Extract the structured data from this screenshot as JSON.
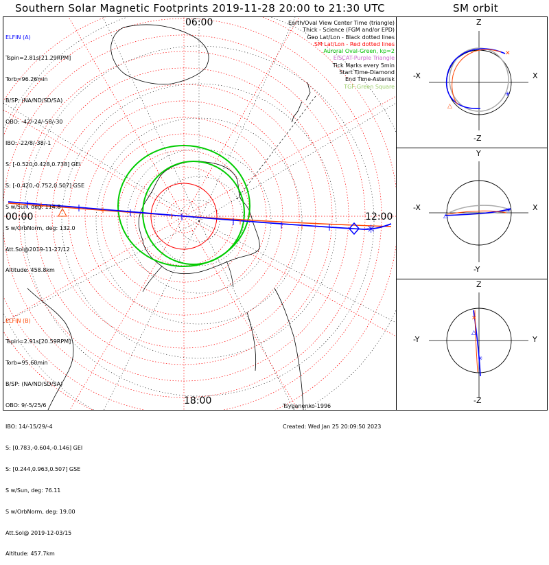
{
  "title": "Southern Solar Magnetic Footprints 2019-11-28 20:00 to 21:30 UTC",
  "sm_title": "SM orbit",
  "elfin_a": {
    "name": "ELFIN (A)",
    "color": "#0000ff",
    "lines": [
      "Tspin=2.81s[21.29RPM]",
      "Torb=96.26min",
      "B/SP: (NA/ND/SD/SA)",
      "OBO: -42/-24/-58/-30",
      "IBO: -22/8/-38/-1",
      "S: [-0.520,0.428,0.738] GEI",
      "S: [-0.420,-0.752,0.507] GSE",
      "S w/Sun, deg: 114.8",
      "S w/OrbNorm, deg: 132.0",
      "Att.Sol@2019-11-27/12",
      "Altitude: 458.8km"
    ]
  },
  "elfin_b": {
    "name": "ELFIN (B)",
    "color": "#ff4500",
    "lines": [
      "Tspin=2.91s[20.59RPM]",
      "Torb=95.60min",
      "B/SP: (NA/ND/SD/SA)",
      "OBO: 9/-5/25/6",
      "IBO: 14/-15/29/-4",
      "S: [0.783,-0.604,-0.146] GEI",
      "S: [0.244,0.963,0.507] GSE",
      "S w/Sun, deg: 76.11",
      "S w/OrbNorm, deg: 19.00",
      "Att.Sol@ 2019-12-03/15",
      "Altitude: 457.7km"
    ]
  },
  "legend": [
    {
      "text": "Earth/Oval View Center Time (triangle)",
      "color": "#000000"
    },
    {
      "text": "Thick - Science (FGM and/or EPD)",
      "color": "#000000"
    },
    {
      "text": "Geo Lat/Lon - Black dotted lines",
      "color": "#000000"
    },
    {
      "text": "SM Lat/Lon - Red dotted lines",
      "color": "#ff0000"
    },
    {
      "text": "Auroral Oval-Green, kp=2",
      "color": "#00c000"
    },
    {
      "text": "EISCAT-Purple Triangle",
      "color": "#cc66cc"
    },
    {
      "text": "Tick Marks every 5min",
      "color": "#000000"
    },
    {
      "text": "Start Time-Diamond",
      "color": "#000000"
    },
    {
      "text": "End Time-Asterisk",
      "color": "#000000"
    },
    {
      "text": "TGF-Green Square",
      "color": "#99cc66"
    }
  ],
  "credits": {
    "author": "Tsyganenko-1996",
    "created": "Created: Wed Jan 25 20:09:50 2023"
  },
  "map_labels": {
    "top": "06:00",
    "left": "00:00",
    "right": "12:00",
    "bottom": "18:00"
  },
  "sm_panels": [
    {
      "top": "Z",
      "bottom": "-Z",
      "left": "-X",
      "right": "X"
    },
    {
      "top": "Y",
      "bottom": "-Y",
      "left": "-X",
      "right": "X"
    },
    {
      "top": "Z",
      "bottom": "-Z",
      "left": "-Y",
      "right": "Y"
    }
  ]
}
